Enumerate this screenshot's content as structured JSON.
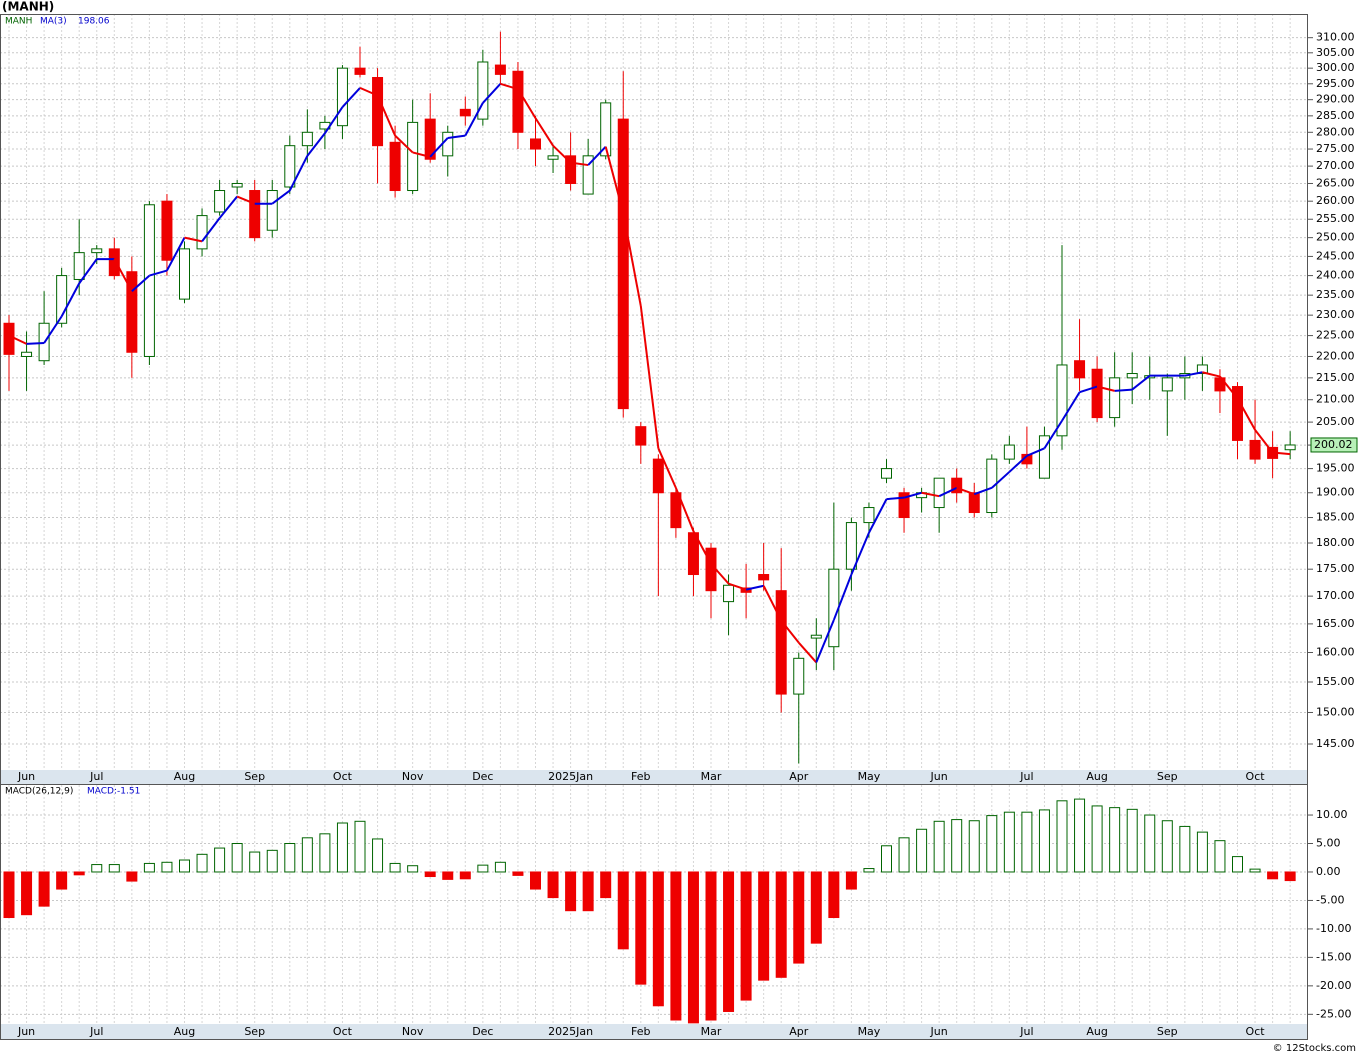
{
  "chart_data": [
    {
      "type": "candlestick",
      "title": "(MANH)",
      "symbol": "MANH",
      "log_scale": true,
      "grid": true,
      "up_color": "#006400",
      "down_color": "#ee0000",
      "categories": [
        null,
        "Jun",
        null,
        null,
        null,
        "Jul",
        null,
        null,
        null,
        null,
        "Aug",
        null,
        null,
        null,
        "Sep",
        null,
        null,
        null,
        null,
        "Oct",
        null,
        null,
        null,
        "Nov",
        null,
        null,
        null,
        "Dec",
        null,
        null,
        null,
        null,
        "2025Jan",
        null,
        null,
        null,
        "Feb",
        null,
        null,
        null,
        "Mar",
        null,
        null,
        null,
        null,
        "Apr",
        null,
        null,
        null,
        "May",
        null,
        null,
        null,
        "Jun",
        null,
        null,
        null,
        null,
        "Jul",
        null,
        null,
        null,
        "Aug",
        null,
        null,
        null,
        "Sep",
        null,
        null,
        null,
        null,
        "Oct",
        null,
        null
      ],
      "open": [
        228,
        220,
        219,
        228,
        239,
        246,
        247,
        241,
        220,
        260,
        234,
        247,
        257,
        264,
        263,
        252,
        264,
        276,
        281,
        282,
        300,
        297,
        277,
        263,
        284,
        273,
        287,
        284,
        301,
        299,
        278,
        272,
        273,
        262,
        273,
        284,
        204,
        197,
        190,
        182,
        179,
        169,
        171.5,
        174,
        171,
        153,
        162.5,
        161,
        175,
        184,
        193,
        190,
        189,
        187,
        193,
        190,
        186,
        197,
        198,
        193,
        202,
        219,
        217,
        206,
        215,
        215,
        212,
        215,
        216,
        215,
        213,
        201,
        199.5,
        199
      ],
      "high": [
        230,
        226,
        236,
        242,
        255,
        248,
        250,
        245,
        260,
        262,
        249,
        258,
        266,
        266,
        266,
        266,
        279,
        287,
        285,
        301,
        307,
        300,
        282,
        290,
        292,
        282,
        291,
        306,
        312,
        302,
        285,
        276,
        280,
        278,
        290,
        299,
        205,
        198,
        191,
        183,
        180,
        174,
        176,
        180,
        179,
        160,
        166,
        188,
        185,
        188,
        197,
        191,
        191,
        193,
        195,
        192,
        198,
        202,
        204,
        204,
        248,
        229,
        220,
        221,
        221,
        220,
        216,
        220,
        220,
        217,
        214,
        210,
        203,
        203
      ],
      "low": [
        212,
        212,
        218,
        227,
        235,
        243,
        239,
        215,
        218,
        240,
        233,
        245,
        256,
        262,
        249,
        250,
        262,
        271,
        275,
        278,
        297,
        265,
        261,
        262,
        271,
        267,
        282,
        282,
        295,
        275,
        270,
        268,
        263,
        262,
        272,
        206,
        196,
        170,
        181,
        170,
        166,
        163,
        166,
        171,
        150,
        142,
        157,
        157,
        171,
        181,
        192,
        182,
        186,
        182,
        188,
        185,
        185,
        196,
        195,
        193,
        199,
        212,
        205,
        204,
        209,
        210,
        202,
        210,
        212,
        207,
        197,
        196,
        193,
        197
      ],
      "close": [
        220.5,
        221,
        228,
        240,
        246,
        247,
        240,
        221,
        259,
        244,
        247,
        256,
        263,
        265,
        250,
        263,
        276,
        280,
        283,
        300,
        298,
        276,
        263,
        283,
        272,
        280,
        285,
        302,
        298,
        280,
        275,
        273,
        265,
        273,
        289,
        208,
        200,
        190,
        183,
        174,
        171,
        172,
        170.7,
        173,
        153,
        159,
        163,
        175,
        184,
        187,
        195,
        185,
        190,
        193,
        190,
        186,
        197,
        200,
        196,
        202,
        218,
        215,
        206,
        215,
        216,
        215.5,
        215,
        216,
        218,
        212,
        201,
        197,
        197.15,
        200.02
      ],
      "ma": {
        "name": "MA(3)",
        "up_color": "#0000dd",
        "down_color": "#ee0000",
        "values": [
          225,
          223,
          223.2,
          229.7,
          238,
          244.3,
          244.3,
          236,
          240,
          241.3,
          250,
          249,
          255.3,
          261.3,
          259.3,
          259.3,
          263,
          273,
          279.7,
          287.7,
          293.7,
          291.3,
          279,
          274,
          272.7,
          278.3,
          279,
          289,
          295,
          293.3,
          284.3,
          276,
          271,
          270.3,
          275.7,
          256.7,
          232.3,
          199.3,
          191,
          182.3,
          176,
          172.3,
          171.2,
          171.9,
          165.6,
          161.7,
          158.3,
          165.7,
          174,
          182,
          188.7,
          189,
          190,
          189.3,
          191,
          189.7,
          191,
          194.3,
          197.7,
          199.3,
          205.3,
          211.7,
          213,
          212,
          212.3,
          215.5,
          215.5,
          215.5,
          216.3,
          215.3,
          210.3,
          203.3,
          198.4,
          198.06
        ]
      },
      "ylim": [
        141,
        318
      ],
      "yticks": [
        {
          "value": 145,
          "label": "145.00"
        },
        {
          "value": 150,
          "label": "150.00"
        },
        {
          "value": 155,
          "label": "155.00"
        },
        {
          "value": 160,
          "label": "160.00"
        },
        {
          "value": 165,
          "label": "165.00"
        },
        {
          "value": 170,
          "label": "170.00"
        },
        {
          "value": 175,
          "label": "175.00"
        },
        {
          "value": 180,
          "label": "180.00"
        },
        {
          "value": 185,
          "label": "185.00"
        },
        {
          "value": 190,
          "label": "190.00"
        },
        {
          "value": 195,
          "label": "195.00"
        },
        {
          "value": 200,
          "label": "200.00"
        },
        {
          "value": 205,
          "label": "205.00"
        },
        {
          "value": 210,
          "label": "210.00"
        },
        {
          "value": 215,
          "label": "215.00"
        },
        {
          "value": 220,
          "label": "220.00"
        },
        {
          "value": 225,
          "label": "225.00"
        },
        {
          "value": 230,
          "label": "230.00"
        },
        {
          "value": 235,
          "label": "235.00"
        },
        {
          "value": 240,
          "label": "240.00"
        },
        {
          "value": 245,
          "label": "245.00"
        },
        {
          "value": 250,
          "label": "250.00"
        },
        {
          "value": 255,
          "label": "255.00"
        },
        {
          "value": 260,
          "label": "260.00"
        },
        {
          "value": 265,
          "label": "265.00"
        },
        {
          "value": 270,
          "label": "270.00"
        },
        {
          "value": 275,
          "label": "275.00"
        },
        {
          "value": 280,
          "label": "280.00"
        },
        {
          "value": 285,
          "label": "285.00"
        },
        {
          "value": 290,
          "label": "290.00"
        },
        {
          "value": 295,
          "label": "295.00"
        },
        {
          "value": 300,
          "label": "300.00"
        },
        {
          "value": 305,
          "label": "305.00"
        },
        {
          "value": 310,
          "label": "310.00"
        }
      ]
    },
    {
      "type": "bar",
      "title": "MACD(26,12,9)",
      "macd_label": "MACD:-1.51",
      "grid": true,
      "up_color": "#006400",
      "down_color": "#ee0000",
      "values": [
        -8,
        -7.5,
        -6,
        -3,
        -0.5,
        1.3,
        1.3,
        -1.6,
        1.5,
        1.7,
        2.1,
        3.1,
        4.2,
        5,
        3.5,
        3.8,
        5,
        6,
        6.7,
        8.6,
        8.9,
        5.8,
        1.5,
        1.1,
        -0.8,
        -1.3,
        -1.2,
        1.2,
        1.7,
        -0.6,
        -3,
        -4.5,
        -6.8,
        -6.8,
        -4.5,
        -13.5,
        -19.7,
        -23.5,
        -26,
        -26.5,
        -26,
        -24.5,
        -22.5,
        -19,
        -18.5,
        -16,
        -12.5,
        -8,
        -3,
        0.6,
        4.6,
        6,
        7.5,
        8.9,
        9.2,
        9,
        9.9,
        10.5,
        10.5,
        10.9,
        12.5,
        12.8,
        11.6,
        11.3,
        11,
        10,
        9,
        8,
        7,
        5.5,
        2.7,
        0.5,
        -1.2,
        -1.51
      ],
      "ylim": [
        -26.7,
        15.1
      ],
      "yticks": [
        {
          "value": -25,
          "label": "-25.00"
        },
        {
          "value": -20,
          "label": "-20.00"
        },
        {
          "value": -15,
          "label": "-15.00"
        },
        {
          "value": -10,
          "label": "-10.00"
        },
        {
          "value": -5,
          "label": "-5.00"
        },
        {
          "value": 0,
          "label": "0.00"
        },
        {
          "value": 5,
          "label": "5.00"
        },
        {
          "value": 10,
          "label": "10.00"
        }
      ]
    }
  ],
  "footer": "© 12Stocks.com"
}
